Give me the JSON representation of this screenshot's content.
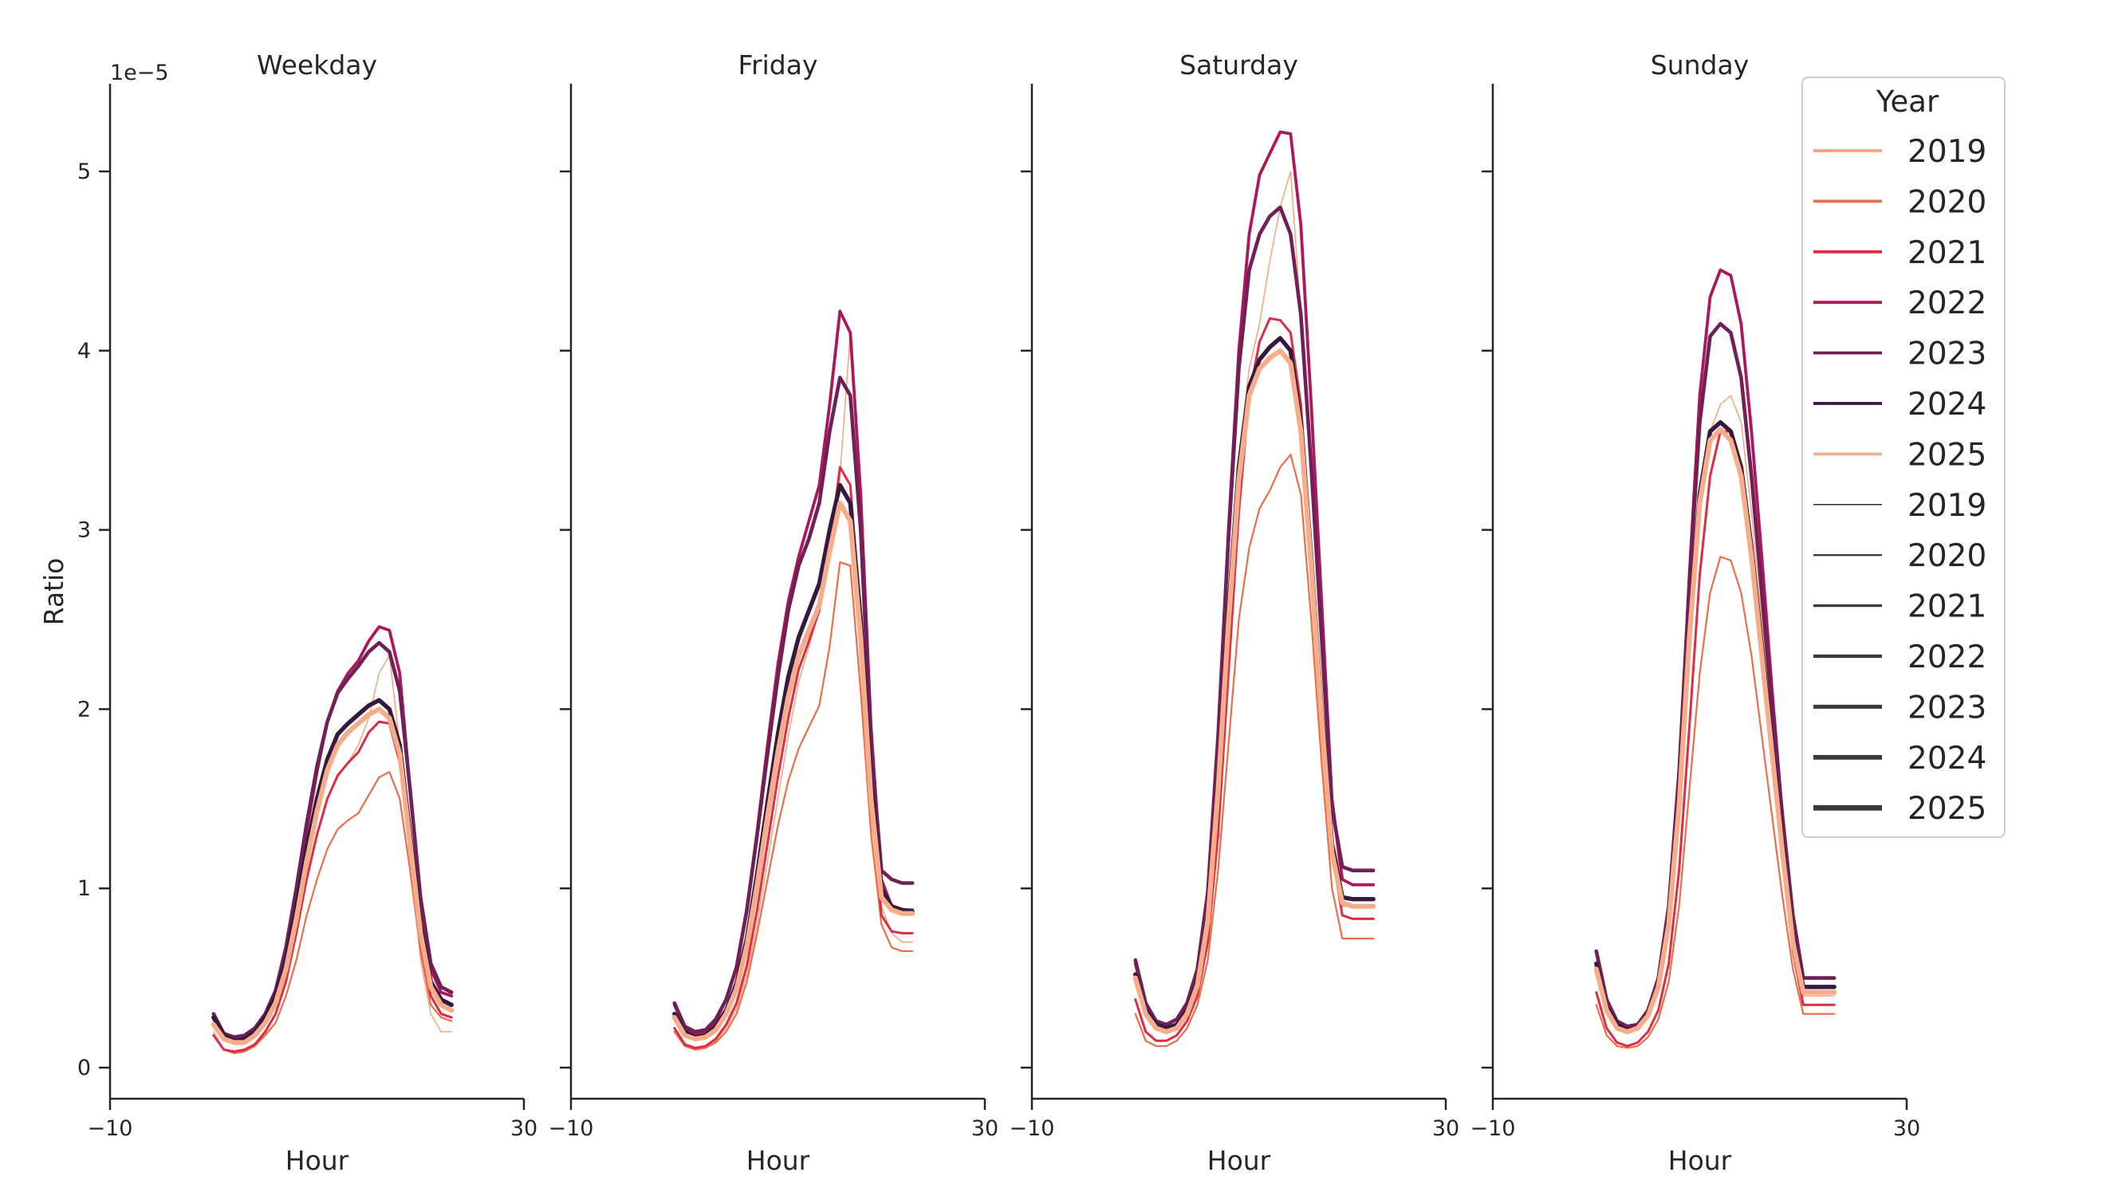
{
  "chart_data": {
    "type": "line",
    "title": "",
    "ylabel": "Ratio",
    "y_offset_label": "1e−5",
    "ylim": [
      -1.8,
      5.5
    ],
    "yticks": [
      0,
      1,
      2,
      3,
      4,
      5
    ],
    "hours": [
      0,
      1,
      2,
      3,
      4,
      5,
      6,
      7,
      8,
      9,
      10,
      11,
      12,
      13,
      14,
      15,
      16,
      17,
      18,
      19,
      20,
      21,
      22,
      23
    ],
    "legend": {
      "title": "Year",
      "placement": "top-right",
      "hue_entries": [
        {
          "label": "2019",
          "color": "#f6a47c"
        },
        {
          "label": "2020",
          "color": "#ec6e49"
        },
        {
          "label": "2021",
          "color": "#dd2c45"
        },
        {
          "label": "2022",
          "color": "#ae1759"
        },
        {
          "label": "2023",
          "color": "#701f57"
        },
        {
          "label": "2024",
          "color": "#35193e"
        },
        {
          "label": "2025",
          "color": "#f6ad8a"
        }
      ],
      "size_entries": [
        {
          "label": "2019",
          "width": 1.5
        },
        {
          "label": "2020",
          "width": 2.2
        },
        {
          "label": "2021",
          "width": 3.0
        },
        {
          "label": "2022",
          "width": 3.8
        },
        {
          "label": "2023",
          "width": 4.6
        },
        {
          "label": "2024",
          "width": 5.4
        },
        {
          "label": "2025",
          "width": 6.2
        }
      ]
    },
    "panels": [
      {
        "title": "Weekday",
        "xlabel": "Hour",
        "xlim": [
          -10,
          30
        ],
        "xtick_labels": [
          "−10",
          "30"
        ],
        "series": [
          {
            "year": "2019",
            "values": [
              0.2,
              0.1,
              0.09,
              0.1,
              0.13,
              0.2,
              0.3,
              0.5,
              0.75,
              1.05,
              1.3,
              1.5,
              1.62,
              1.7,
              1.8,
              1.95,
              2.2,
              2.3,
              1.8,
              1.2,
              0.6,
              0.3,
              0.2,
              0.2
            ]
          },
          {
            "year": "2020",
            "values": [
              0.18,
              0.1,
              0.08,
              0.09,
              0.12,
              0.18,
              0.25,
              0.4,
              0.6,
              0.85,
              1.05,
              1.22,
              1.33,
              1.38,
              1.42,
              1.52,
              1.62,
              1.65,
              1.5,
              1.1,
              0.65,
              0.35,
              0.28,
              0.26
            ]
          },
          {
            "year": "2021",
            "values": [
              0.18,
              0.1,
              0.09,
              0.1,
              0.13,
              0.2,
              0.3,
              0.48,
              0.75,
              1.05,
              1.3,
              1.5,
              1.63,
              1.7,
              1.76,
              1.87,
              1.93,
              1.92,
              1.7,
              1.2,
              0.7,
              0.4,
              0.3,
              0.28
            ]
          },
          {
            "year": "2022",
            "values": [
              0.28,
              0.18,
              0.16,
              0.17,
              0.2,
              0.28,
              0.4,
              0.62,
              0.95,
              1.32,
              1.65,
              1.93,
              2.1,
              2.2,
              2.27,
              2.38,
              2.46,
              2.44,
              2.2,
              1.55,
              0.95,
              0.55,
              0.42,
              0.4
            ]
          },
          {
            "year": "2023",
            "values": [
              0.3,
              0.19,
              0.17,
              0.18,
              0.22,
              0.3,
              0.43,
              0.67,
              1.0,
              1.36,
              1.68,
              1.93,
              2.09,
              2.17,
              2.24,
              2.32,
              2.37,
              2.32,
              2.1,
              1.55,
              0.95,
              0.58,
              0.45,
              0.42
            ]
          },
          {
            "year": "2024",
            "values": [
              0.28,
              0.18,
              0.15,
              0.16,
              0.2,
              0.28,
              0.4,
              0.6,
              0.9,
              1.22,
              1.5,
              1.72,
              1.86,
              1.92,
              1.97,
              2.02,
              2.05,
              2.0,
              1.8,
              1.3,
              0.8,
              0.48,
              0.38,
              0.35
            ]
          },
          {
            "year": "2025",
            "values": [
              0.24,
              0.16,
              0.14,
              0.14,
              0.18,
              0.25,
              0.36,
              0.55,
              0.83,
              1.15,
              1.43,
              1.66,
              1.8,
              1.87,
              1.92,
              1.97,
              2.0,
              1.95,
              1.75,
              1.25,
              0.75,
              0.45,
              0.35,
              0.32
            ]
          }
        ]
      },
      {
        "title": "Friday",
        "xlabel": "Hour",
        "xlim": [
          -10,
          30
        ],
        "xtick_labels": [
          "−10",
          "30"
        ],
        "series": [
          {
            "year": "2019",
            "values": [
              0.2,
              0.12,
              0.1,
              0.11,
              0.15,
              0.22,
              0.33,
              0.52,
              0.8,
              1.15,
              1.5,
              1.85,
              2.15,
              2.35,
              2.55,
              2.85,
              3.3,
              4.1,
              3.2,
              1.9,
              0.9,
              0.75,
              0.7,
              0.7
            ]
          },
          {
            "year": "2020",
            "values": [
              0.2,
              0.12,
              0.1,
              0.11,
              0.14,
              0.2,
              0.3,
              0.48,
              0.75,
              1.05,
              1.35,
              1.6,
              1.78,
              1.9,
              2.02,
              2.35,
              2.82,
              2.8,
              2.1,
              1.3,
              0.8,
              0.67,
              0.65,
              0.65
            ]
          },
          {
            "year": "2021",
            "values": [
              0.22,
              0.13,
              0.11,
              0.12,
              0.16,
              0.24,
              0.36,
              0.57,
              0.88,
              1.25,
              1.62,
              1.95,
              2.22,
              2.38,
              2.55,
              2.9,
              3.35,
              3.25,
              2.5,
              1.5,
              0.85,
              0.76,
              0.75,
              0.75
            ]
          },
          {
            "year": "2022",
            "values": [
              0.35,
              0.22,
              0.19,
              0.2,
              0.26,
              0.38,
              0.56,
              0.88,
              1.32,
              1.8,
              2.25,
              2.6,
              2.85,
              3.05,
              3.25,
              3.7,
              4.22,
              4.1,
              3.2,
              1.9,
              1.05,
              0.9,
              0.88,
              0.88
            ]
          },
          {
            "year": "2023",
            "values": [
              0.36,
              0.23,
              0.2,
              0.21,
              0.27,
              0.38,
              0.56,
              0.88,
              1.3,
              1.75,
              2.18,
              2.55,
              2.8,
              2.95,
              3.15,
              3.55,
              3.85,
              3.75,
              3.0,
              1.8,
              1.1,
              1.05,
              1.03,
              1.03
            ]
          },
          {
            "year": "2024",
            "values": [
              0.3,
              0.2,
              0.17,
              0.18,
              0.23,
              0.32,
              0.47,
              0.72,
              1.08,
              1.48,
              1.86,
              2.18,
              2.4,
              2.55,
              2.7,
              3.0,
              3.25,
              3.15,
              2.5,
              1.6,
              1.0,
              0.9,
              0.88,
              0.87
            ]
          },
          {
            "year": "2025",
            "values": [
              0.28,
              0.18,
              0.16,
              0.17,
              0.21,
              0.3,
              0.44,
              0.68,
              1.02,
              1.4,
              1.76,
              2.07,
              2.3,
              2.44,
              2.58,
              2.88,
              3.15,
              3.05,
              2.4,
              1.5,
              0.95,
              0.88,
              0.86,
              0.86
            ]
          }
        ]
      },
      {
        "title": "Saturday",
        "xlabel": "Hour",
        "xlim": [
          -10,
          30
        ],
        "xtick_labels": [
          "−10",
          "30"
        ],
        "series": [
          {
            "year": "2019",
            "values": [
              0.5,
              0.3,
              0.22,
              0.2,
              0.22,
              0.3,
              0.45,
              0.8,
              1.5,
              2.5,
              3.4,
              3.9,
              4.15,
              4.5,
              4.8,
              5.0,
              4.2,
              3.3,
              2.4,
              1.5,
              0.9,
              0.9,
              0.9,
              0.9
            ]
          },
          {
            "year": "2020",
            "values": [
              0.3,
              0.15,
              0.12,
              0.12,
              0.15,
              0.22,
              0.35,
              0.6,
              1.1,
              1.8,
              2.5,
              2.9,
              3.12,
              3.22,
              3.35,
              3.42,
              3.2,
              2.5,
              1.7,
              1.0,
              0.72,
              0.72,
              0.72,
              0.72
            ]
          },
          {
            "year": "2021",
            "values": [
              0.38,
              0.2,
              0.15,
              0.15,
              0.18,
              0.26,
              0.4,
              0.7,
              1.3,
              2.2,
              3.1,
              3.75,
              4.05,
              4.18,
              4.17,
              4.1,
              3.7,
              2.9,
              2.0,
              1.2,
              0.85,
              0.83,
              0.83,
              0.83
            ]
          },
          {
            "year": "2022",
            "values": [
              0.58,
              0.35,
              0.26,
              0.24,
              0.27,
              0.36,
              0.55,
              0.98,
              1.85,
              3.0,
              4.0,
              4.65,
              4.98,
              5.1,
              5.22,
              5.21,
              4.7,
              3.7,
              2.6,
              1.5,
              1.05,
              1.02,
              1.02,
              1.02
            ]
          },
          {
            "year": "2023",
            "values": [
              0.6,
              0.36,
              0.26,
              0.24,
              0.27,
              0.36,
              0.55,
              0.98,
              1.85,
              2.95,
              3.9,
              4.45,
              4.65,
              4.75,
              4.8,
              4.65,
              4.2,
              3.35,
              2.4,
              1.45,
              1.12,
              1.1,
              1.1,
              1.1
            ]
          },
          {
            "year": "2024",
            "values": [
              0.52,
              0.32,
              0.24,
              0.22,
              0.24,
              0.32,
              0.48,
              0.85,
              1.6,
              2.55,
              3.35,
              3.8,
              3.95,
              4.02,
              4.07,
              4.0,
              3.6,
              2.85,
              2.0,
              1.25,
              0.95,
              0.94,
              0.94,
              0.94
            ]
          },
          {
            "year": "2025",
            "values": [
              0.5,
              0.3,
              0.22,
              0.2,
              0.22,
              0.3,
              0.46,
              0.82,
              1.55,
              2.48,
              3.28,
              3.75,
              3.9,
              3.96,
              4.0,
              3.93,
              3.55,
              2.8,
              1.95,
              1.2,
              0.92,
              0.9,
              0.9,
              0.9
            ]
          }
        ]
      },
      {
        "title": "Sunday",
        "xlabel": "Hour",
        "xlim": [
          -10,
          30
        ],
        "xtick_labels": [
          "−10",
          "30"
        ],
        "series": [
          {
            "year": "2019",
            "values": [
              0.55,
              0.32,
              0.22,
              0.2,
              0.22,
              0.3,
              0.46,
              0.8,
              1.4,
              2.3,
              3.1,
              3.55,
              3.7,
              3.75,
              3.6,
              3.1,
              2.5,
              1.9,
              1.3,
              0.7,
              0.4,
              0.4,
              0.4,
              0.4
            ]
          },
          {
            "year": "2020",
            "values": [
              0.35,
              0.18,
              0.12,
              0.11,
              0.12,
              0.17,
              0.27,
              0.48,
              0.9,
              1.55,
              2.2,
              2.65,
              2.85,
              2.83,
              2.65,
              2.3,
              1.85,
              1.4,
              0.95,
              0.55,
              0.3,
              0.3,
              0.3,
              0.3
            ]
          },
          {
            "year": "2021",
            "values": [
              0.42,
              0.22,
              0.14,
              0.12,
              0.14,
              0.2,
              0.32,
              0.58,
              1.1,
              1.9,
              2.75,
              3.3,
              3.55,
              3.55,
              3.35,
              2.9,
              2.35,
              1.75,
              1.2,
              0.65,
              0.35,
              0.35,
              0.35,
              0.35
            ]
          },
          {
            "year": "2022",
            "values": [
              0.55,
              0.32,
              0.22,
              0.2,
              0.22,
              0.3,
              0.48,
              0.88,
              1.62,
              2.75,
              3.75,
              4.3,
              4.45,
              4.42,
              4.15,
              3.55,
              2.85,
              2.1,
              1.4,
              0.75,
              0.45,
              0.45,
              0.45,
              0.45
            ]
          },
          {
            "year": "2023",
            "values": [
              0.65,
              0.38,
              0.26,
              0.23,
              0.24,
              0.32,
              0.5,
              0.9,
              1.65,
              2.7,
              3.6,
              4.08,
              4.15,
              4.1,
              3.85,
              3.3,
              2.65,
              2.0,
              1.4,
              0.85,
              0.5,
              0.5,
              0.5,
              0.5
            ]
          },
          {
            "year": "2024",
            "values": [
              0.58,
              0.34,
              0.24,
              0.21,
              0.22,
              0.3,
              0.46,
              0.82,
              1.5,
              2.45,
              3.2,
              3.55,
              3.6,
              3.55,
              3.35,
              2.9,
              2.35,
              1.8,
              1.25,
              0.72,
              0.45,
              0.45,
              0.45,
              0.45
            ]
          },
          {
            "year": "2025",
            "values": [
              0.55,
              0.32,
              0.22,
              0.2,
              0.22,
              0.29,
              0.45,
              0.8,
              1.46,
              2.4,
              3.15,
              3.5,
              3.56,
              3.5,
              3.3,
              2.85,
              2.3,
              1.75,
              1.2,
              0.7,
              0.42,
              0.42,
              0.42,
              0.42
            ]
          }
        ]
      }
    ]
  }
}
